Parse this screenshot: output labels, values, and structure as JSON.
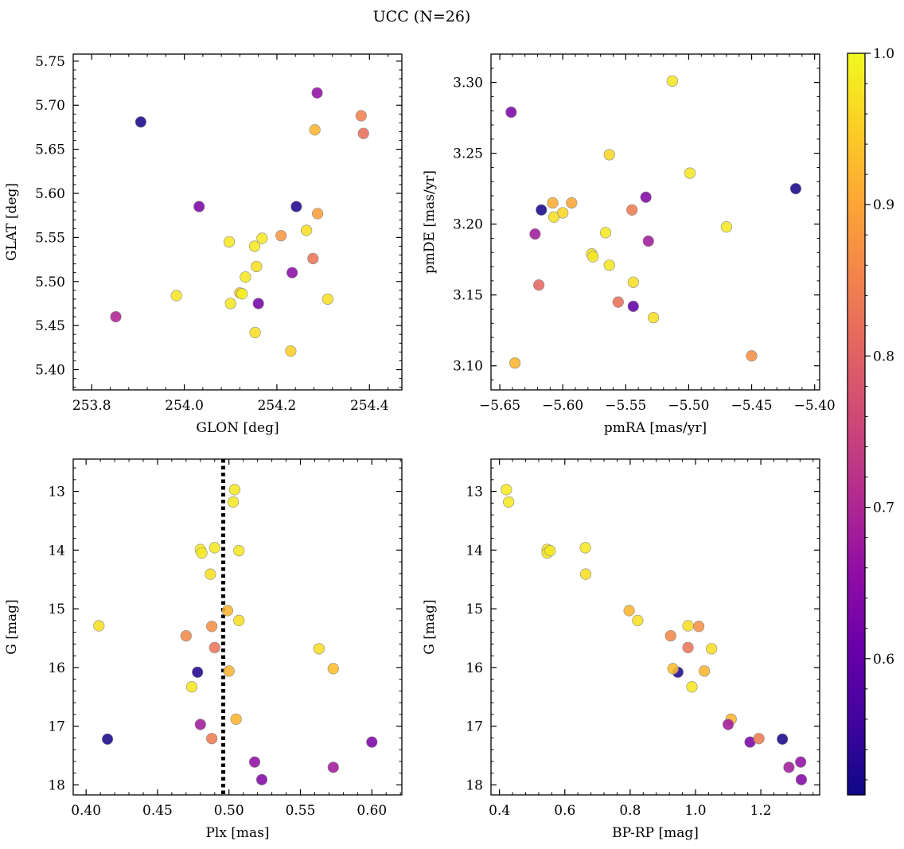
{
  "figure_title": "UCC (N=26)",
  "colormap": "plasma",
  "colorbar": {
    "range": [
      0.51,
      1.0
    ],
    "ticks": [
      0.6,
      0.7,
      0.8,
      0.9,
      1.0
    ],
    "tick_labels": [
      "0.6",
      "0.7",
      "0.8",
      "0.9",
      "1.0"
    ]
  },
  "chart_data": [
    {
      "type": "scatter",
      "panel": "top-left",
      "xlabel": "GLON [deg]",
      "ylabel": "GLAT [deg]",
      "xlim": [
        253.76,
        254.47
      ],
      "ylim": [
        5.377,
        5.758
      ],
      "y_inverted": false,
      "xticks": [
        253.8,
        254.0,
        254.2,
        254.4
      ],
      "xtick_labels": [
        "253.8",
        "254.0",
        "254.2",
        "254.4"
      ],
      "yticks": [
        5.4,
        5.45,
        5.5,
        5.55,
        5.6,
        5.65,
        5.7,
        5.75
      ],
      "ytick_labels": [
        "5.40",
        "5.45",
        "5.50",
        "5.55",
        "5.60",
        "5.65",
        "5.70",
        "5.75"
      ],
      "points": [
        {
          "x": 253.906,
          "y": 5.681,
          "c": 0.52
        },
        {
          "x": 253.852,
          "y": 5.46,
          "c": 0.7
        },
        {
          "x": 253.983,
          "y": 5.484,
          "c": 0.98
        },
        {
          "x": 254.032,
          "y": 5.585,
          "c": 0.63
        },
        {
          "x": 254.097,
          "y": 5.545,
          "c": 0.98
        },
        {
          "x": 254.1,
          "y": 5.475,
          "c": 0.98
        },
        {
          "x": 254.12,
          "y": 5.487,
          "c": 0.94
        },
        {
          "x": 254.132,
          "y": 5.505,
          "c": 0.98
        },
        {
          "x": 254.152,
          "y": 5.54,
          "c": 0.98
        },
        {
          "x": 254.156,
          "y": 5.517,
          "c": 0.97
        },
        {
          "x": 254.16,
          "y": 5.475,
          "c": 0.62
        },
        {
          "x": 254.168,
          "y": 5.549,
          "c": 0.98
        },
        {
          "x": 254.153,
          "y": 5.442,
          "c": 0.97
        },
        {
          "x": 254.209,
          "y": 5.552,
          "c": 0.88
        },
        {
          "x": 254.23,
          "y": 5.421,
          "c": 0.95
        },
        {
          "x": 254.233,
          "y": 5.51,
          "c": 0.65
        },
        {
          "x": 254.242,
          "y": 5.585,
          "c": 0.53
        },
        {
          "x": 254.264,
          "y": 5.558,
          "c": 0.97
        },
        {
          "x": 254.278,
          "y": 5.526,
          "c": 0.83
        },
        {
          "x": 254.288,
          "y": 5.577,
          "c": 0.89
        },
        {
          "x": 254.282,
          "y": 5.672,
          "c": 0.92
        },
        {
          "x": 254.287,
          "y": 5.714,
          "c": 0.66
        },
        {
          "x": 254.31,
          "y": 5.48,
          "c": 0.97
        },
        {
          "x": 254.382,
          "y": 5.688,
          "c": 0.85
        },
        {
          "x": 254.387,
          "y": 5.668,
          "c": 0.82
        },
        {
          "x": 254.125,
          "y": 5.486,
          "c": 0.99
        }
      ]
    },
    {
      "type": "scatter",
      "panel": "top-right",
      "xlabel": "pmRA [mas/yr]",
      "ylabel": "pmDE [mas/yr]",
      "xlim": [
        -5.657,
        -5.396
      ],
      "ylim": [
        3.083,
        3.32
      ],
      "y_inverted": false,
      "xticks": [
        -5.65,
        -5.6,
        -5.55,
        -5.5,
        -5.45,
        -5.4
      ],
      "xtick_labels": [
        "−5.65",
        "−5.60",
        "−5.55",
        "−5.50",
        "−5.45",
        "−5.40"
      ],
      "yticks": [
        3.1,
        3.15,
        3.2,
        3.25,
        3.3
      ],
      "ytick_labels": [
        "3.10",
        "3.15",
        "3.20",
        "3.25",
        "3.30"
      ],
      "points": [
        {
          "x": -5.641,
          "y": 3.279,
          "c": 0.63
        },
        {
          "x": -5.638,
          "y": 3.102,
          "c": 0.92
        },
        {
          "x": -5.622,
          "y": 3.193,
          "c": 0.68
        },
        {
          "x": -5.619,
          "y": 3.157,
          "c": 0.81
        },
        {
          "x": -5.617,
          "y": 3.21,
          "c": 0.52
        },
        {
          "x": -5.608,
          "y": 3.215,
          "c": 0.91
        },
        {
          "x": -5.607,
          "y": 3.205,
          "c": 0.97
        },
        {
          "x": -5.6,
          "y": 3.208,
          "c": 0.96
        },
        {
          "x": -5.593,
          "y": 3.215,
          "c": 0.9
        },
        {
          "x": -5.577,
          "y": 3.179,
          "c": 0.97
        },
        {
          "x": -5.576,
          "y": 3.177,
          "c": 0.98
        },
        {
          "x": -5.566,
          "y": 3.194,
          "c": 0.98
        },
        {
          "x": -5.563,
          "y": 3.249,
          "c": 0.96
        },
        {
          "x": -5.563,
          "y": 3.171,
          "c": 0.98
        },
        {
          "x": -5.556,
          "y": 3.145,
          "c": 0.82
        },
        {
          "x": -5.545,
          "y": 3.21,
          "c": 0.84
        },
        {
          "x": -5.544,
          "y": 3.142,
          "c": 0.6
        },
        {
          "x": -5.544,
          "y": 3.159,
          "c": 0.97
        },
        {
          "x": -5.534,
          "y": 3.219,
          "c": 0.64
        },
        {
          "x": -5.532,
          "y": 3.188,
          "c": 0.68
        },
        {
          "x": -5.528,
          "y": 3.134,
          "c": 0.97
        },
        {
          "x": -5.513,
          "y": 3.301,
          "c": 0.98
        },
        {
          "x": -5.499,
          "y": 3.236,
          "c": 0.98
        },
        {
          "x": -5.47,
          "y": 3.198,
          "c": 0.98
        },
        {
          "x": -5.45,
          "y": 3.107,
          "c": 0.87
        },
        {
          "x": -5.415,
          "y": 3.225,
          "c": 0.52
        }
      ]
    },
    {
      "type": "scatter",
      "panel": "bottom-left",
      "xlabel": "Plx [mas]",
      "ylabel": "G [mag]",
      "xlim": [
        0.391,
        0.621
      ],
      "ylim": [
        12.45,
        18.17
      ],
      "y_inverted": true,
      "vline": {
        "x": 0.496,
        "style": "dotted"
      },
      "xticks": [
        0.4,
        0.45,
        0.5,
        0.55,
        0.6
      ],
      "xtick_labels": [
        "0.40",
        "0.45",
        "0.50",
        "0.55",
        "0.60"
      ],
      "yticks": [
        13,
        14,
        15,
        16,
        17,
        18
      ],
      "ytick_labels": [
        "13",
        "14",
        "15",
        "16",
        "17",
        "18"
      ],
      "points": [
        {
          "x": 0.504,
          "y": 12.97,
          "c": 0.98
        },
        {
          "x": 0.503,
          "y": 13.18,
          "c": 0.98
        },
        {
          "x": 0.48,
          "y": 13.99,
          "c": 0.98
        },
        {
          "x": 0.481,
          "y": 14.05,
          "c": 0.98
        },
        {
          "x": 0.49,
          "y": 13.96,
          "c": 0.98
        },
        {
          "x": 0.507,
          "y": 14.01,
          "c": 0.98
        },
        {
          "x": 0.487,
          "y": 14.41,
          "c": 0.97
        },
        {
          "x": 0.409,
          "y": 15.29,
          "c": 0.97
        },
        {
          "x": 0.499,
          "y": 15.03,
          "c": 0.92
        },
        {
          "x": 0.507,
          "y": 15.2,
          "c": 0.97
        },
        {
          "x": 0.47,
          "y": 15.46,
          "c": 0.86
        },
        {
          "x": 0.488,
          "y": 15.3,
          "c": 0.87
        },
        {
          "x": 0.49,
          "y": 15.66,
          "c": 0.83
        },
        {
          "x": 0.563,
          "y": 15.68,
          "c": 0.97
        },
        {
          "x": 0.573,
          "y": 16.02,
          "c": 0.93
        },
        {
          "x": 0.478,
          "y": 16.08,
          "c": 0.53
        },
        {
          "x": 0.5,
          "y": 16.06,
          "c": 0.92
        },
        {
          "x": 0.474,
          "y": 16.33,
          "c": 0.98
        },
        {
          "x": 0.505,
          "y": 16.88,
          "c": 0.92
        },
        {
          "x": 0.48,
          "y": 16.97,
          "c": 0.68
        },
        {
          "x": 0.415,
          "y": 17.22,
          "c": 0.52
        },
        {
          "x": 0.488,
          "y": 17.21,
          "c": 0.84
        },
        {
          "x": 0.6,
          "y": 17.27,
          "c": 0.63
        },
        {
          "x": 0.518,
          "y": 17.61,
          "c": 0.66
        },
        {
          "x": 0.573,
          "y": 17.7,
          "c": 0.68
        },
        {
          "x": 0.523,
          "y": 17.91,
          "c": 0.64
        }
      ]
    },
    {
      "type": "scatter",
      "panel": "bottom-right",
      "xlabel": "BP-RP [mag]",
      "ylabel": "G [mag]",
      "xlim": [
        0.374,
        1.38
      ],
      "ylim": [
        12.45,
        18.17
      ],
      "y_inverted": true,
      "xticks": [
        0.4,
        0.6,
        0.8,
        1.0,
        1.2
      ],
      "xtick_labels": [
        "0.4",
        "0.6",
        "0.8",
        "1.0",
        "1.2"
      ],
      "yticks": [
        13,
        14,
        15,
        16,
        17,
        18
      ],
      "ytick_labels": [
        "13",
        "14",
        "15",
        "16",
        "17",
        "18"
      ],
      "points": [
        {
          "x": 0.421,
          "y": 12.97,
          "c": 0.98
        },
        {
          "x": 0.428,
          "y": 13.18,
          "c": 0.98
        },
        {
          "x": 0.546,
          "y": 13.99,
          "c": 0.98
        },
        {
          "x": 0.546,
          "y": 14.05,
          "c": 0.98
        },
        {
          "x": 0.555,
          "y": 14.01,
          "c": 0.98
        },
        {
          "x": 0.663,
          "y": 13.96,
          "c": 0.98
        },
        {
          "x": 0.664,
          "y": 14.41,
          "c": 0.97
        },
        {
          "x": 0.797,
          "y": 15.03,
          "c": 0.92
        },
        {
          "x": 0.823,
          "y": 15.2,
          "c": 0.97
        },
        {
          "x": 0.924,
          "y": 15.46,
          "c": 0.86
        },
        {
          "x": 0.977,
          "y": 15.29,
          "c": 0.97
        },
        {
          "x": 1.01,
          "y": 15.3,
          "c": 0.87
        },
        {
          "x": 0.977,
          "y": 15.66,
          "c": 0.83
        },
        {
          "x": 1.049,
          "y": 15.68,
          "c": 0.97
        },
        {
          "x": 0.946,
          "y": 16.08,
          "c": 0.53
        },
        {
          "x": 0.931,
          "y": 16.02,
          "c": 0.93
        },
        {
          "x": 1.027,
          "y": 16.06,
          "c": 0.92
        },
        {
          "x": 0.989,
          "y": 16.33,
          "c": 0.98
        },
        {
          "x": 1.109,
          "y": 16.88,
          "c": 0.92
        },
        {
          "x": 1.1,
          "y": 16.97,
          "c": 0.68
        },
        {
          "x": 1.167,
          "y": 17.27,
          "c": 0.63
        },
        {
          "x": 1.194,
          "y": 17.21,
          "c": 0.84
        },
        {
          "x": 1.266,
          "y": 17.22,
          "c": 0.52
        },
        {
          "x": 1.322,
          "y": 17.61,
          "c": 0.66
        },
        {
          "x": 1.286,
          "y": 17.7,
          "c": 0.68
        },
        {
          "x": 1.324,
          "y": 17.91,
          "c": 0.64
        }
      ]
    }
  ]
}
